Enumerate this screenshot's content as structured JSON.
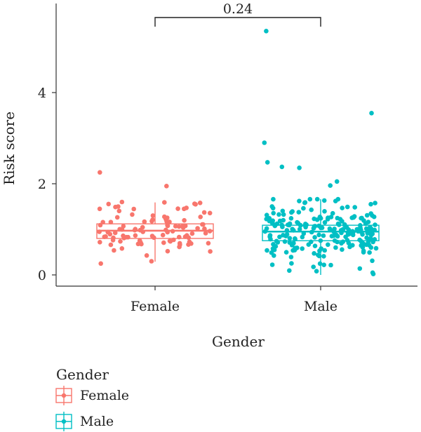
{
  "chart_data": {
    "type": "boxplot",
    "xlabel": "Gender",
    "ylabel": "Risk score",
    "ylim": [
      -0.3,
      5.8
    ],
    "yticks": [
      0,
      2,
      4
    ],
    "categories": [
      "Female",
      "Male"
    ],
    "colors": {
      "Female": "#F8766D",
      "Male": "#00BFC4"
    },
    "boxes": [
      {
        "name": "Female",
        "q1": 0.8,
        "median": 0.97,
        "q3": 1.12,
        "whisker_low": 0.29,
        "whisker_high": 1.59
      },
      {
        "name": "Male",
        "q1": 0.75,
        "median": 0.95,
        "q3": 1.09,
        "whisker_low": 0.0,
        "whisker_high": 1.66
      }
    ],
    "comparison": {
      "label": "0.24",
      "between": [
        "Female",
        "Male"
      ]
    },
    "notable_points": {
      "Female": [
        2.25,
        1.95,
        1.6,
        1.58,
        1.56,
        1.55,
        1.5,
        1.45,
        0.3,
        0.25
      ],
      "Male": [
        5.35,
        3.55,
        2.9,
        2.47,
        2.37,
        2.35,
        2.05,
        1.96,
        0.05,
        0.02
      ]
    },
    "n_points": {
      "Female": 105,
      "Male": 230
    },
    "legend": {
      "title": "Gender",
      "entries": [
        "Female",
        "Male"
      ],
      "position": "bottom-left"
    },
    "grid": false
  }
}
